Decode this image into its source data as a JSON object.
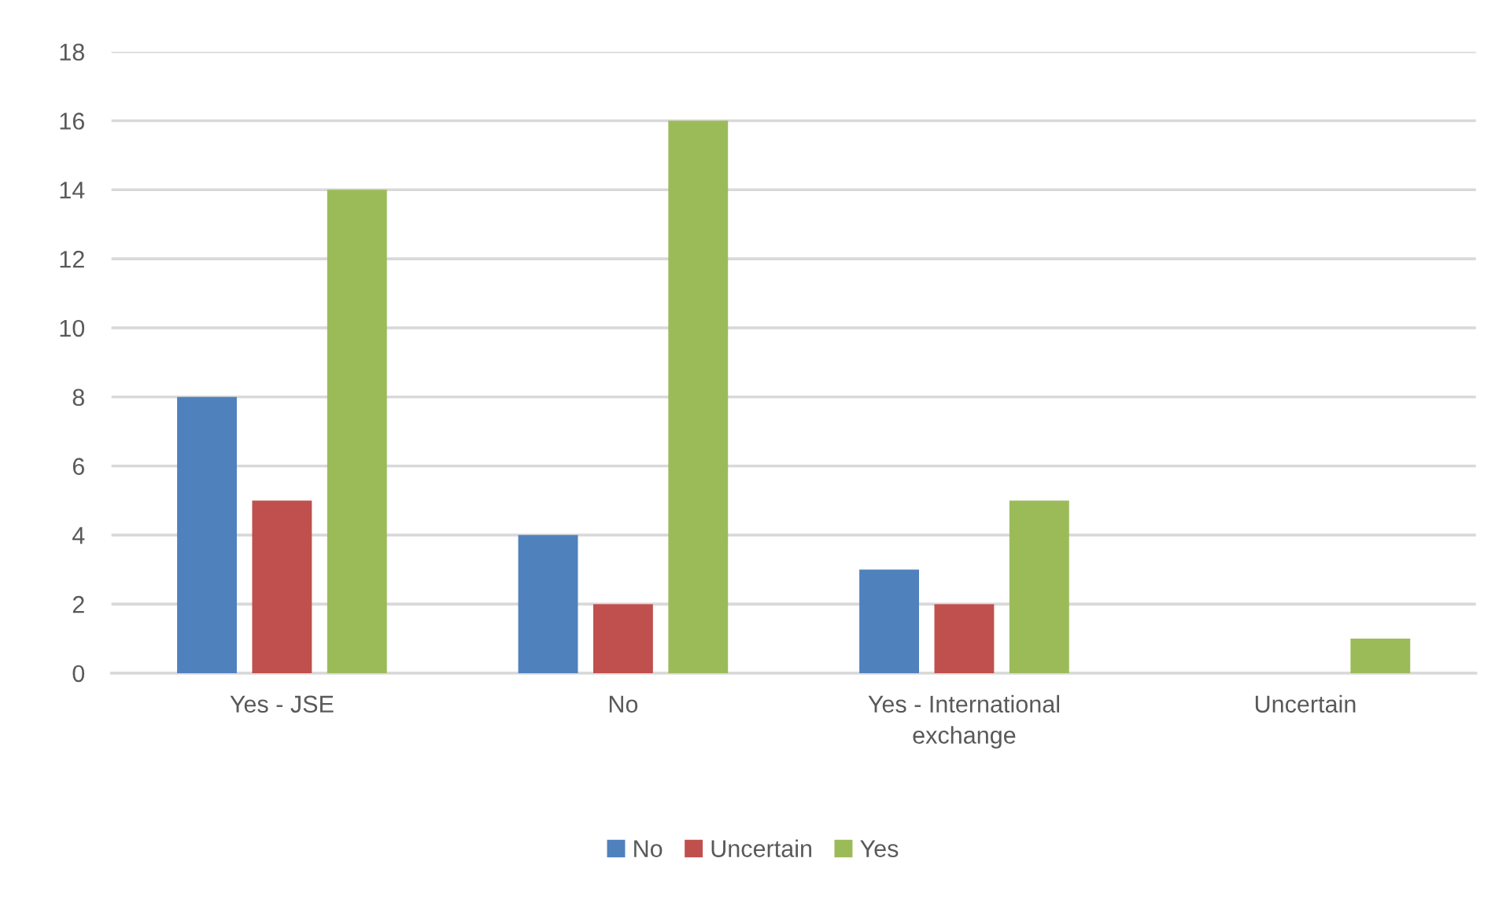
{
  "chart_data": {
    "type": "bar",
    "categories": [
      "Yes - JSE",
      "No",
      "Yes - International exchange",
      "Uncertain"
    ],
    "series": [
      {
        "name": "No",
        "color": "#4f81bd",
        "values": [
          8,
          4,
          3,
          null
        ]
      },
      {
        "name": "Uncertain",
        "color": "#c0504d",
        "values": [
          5,
          2,
          2,
          null
        ]
      },
      {
        "name": "Yes",
        "color": "#9bbb59",
        "values": [
          14,
          16,
          5,
          1
        ]
      }
    ],
    "ylim": [
      0,
      18
    ],
    "yticks": [
      0,
      2,
      4,
      6,
      8,
      10,
      12,
      14,
      16,
      18
    ],
    "grid": "y",
    "legend": "bottom"
  }
}
